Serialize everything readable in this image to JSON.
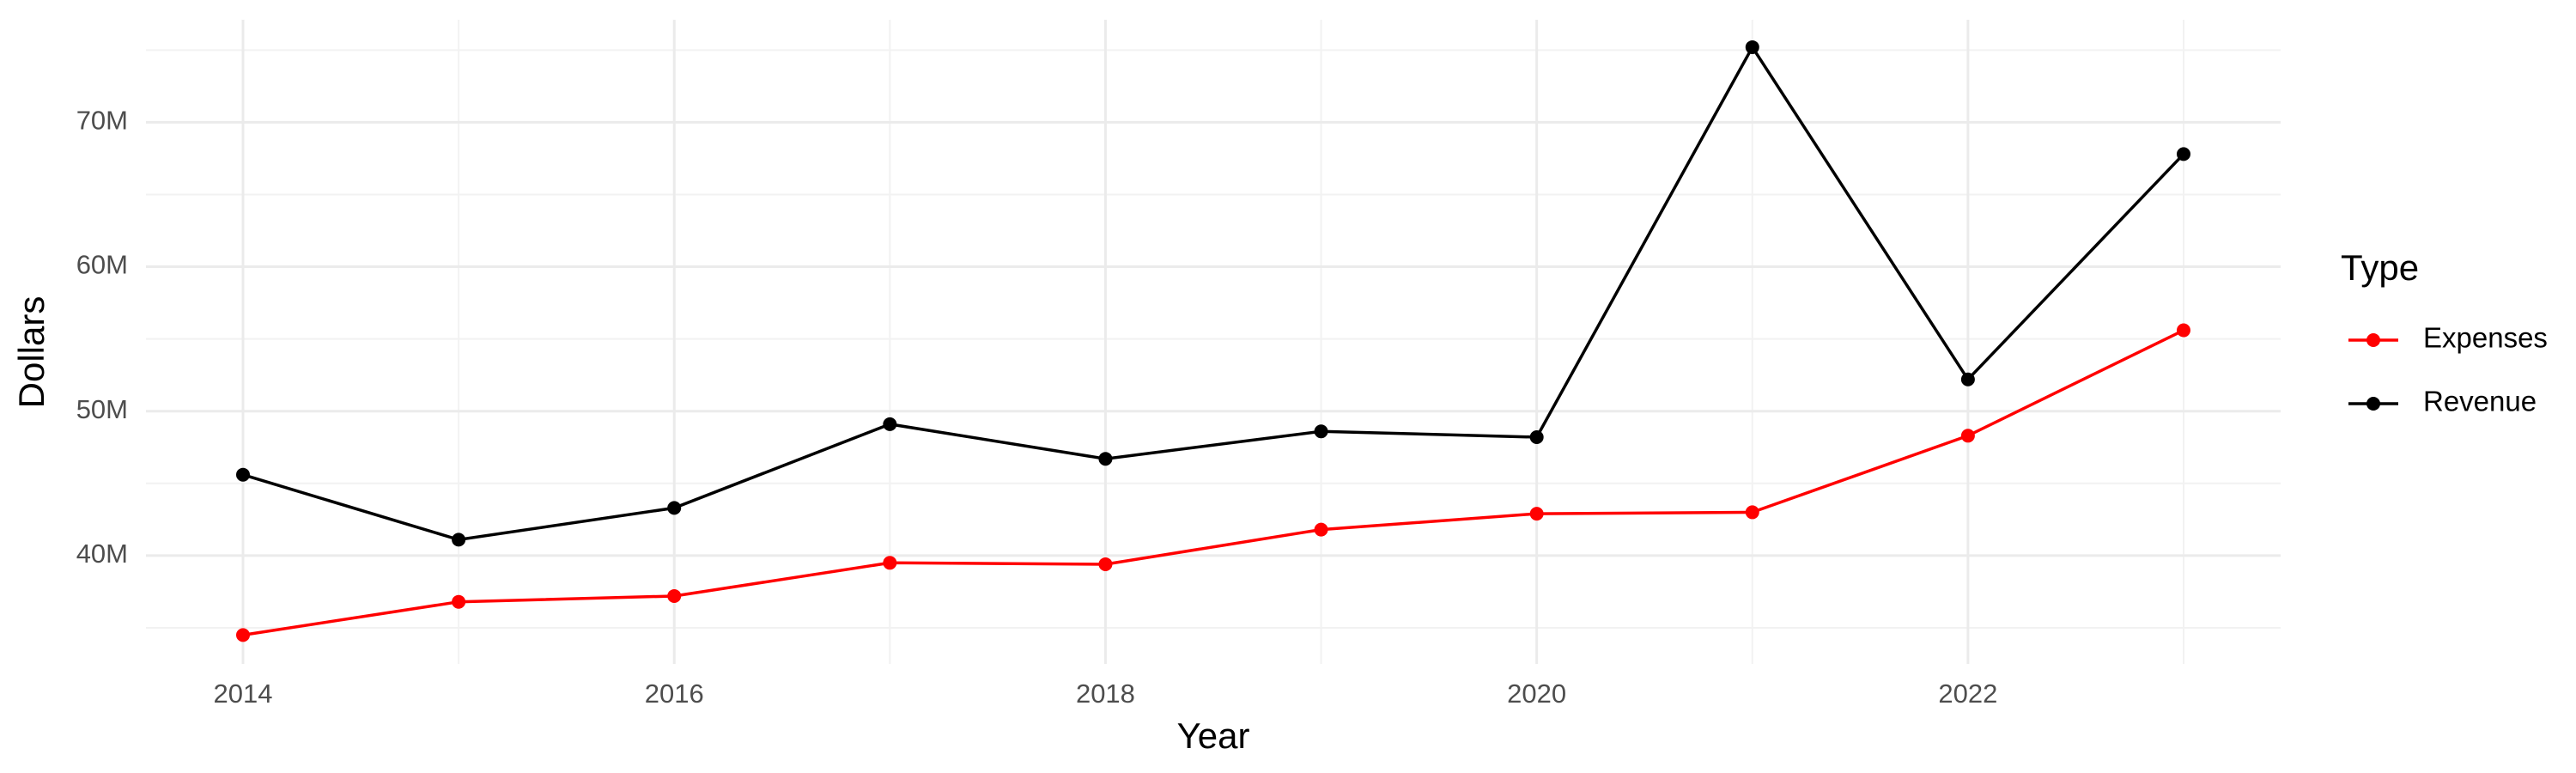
{
  "chart_data": {
    "type": "line",
    "x_label": "Year",
    "y_label": "Dollars",
    "legend_title": "Type",
    "legend_position": "right",
    "grid": true,
    "x": [
      2014,
      2015,
      2016,
      2017,
      2018,
      2019,
      2020,
      2021,
      2022,
      2023
    ],
    "series": [
      {
        "name": "Expenses",
        "color": "#ff0000",
        "values": [
          34500000,
          36800000,
          37200000,
          39500000,
          39400000,
          41800000,
          42900000,
          43000000,
          48300000,
          55600000
        ]
      },
      {
        "name": "Revenue",
        "color": "#000000",
        "values": [
          45600000,
          41100000,
          43300000,
          49100000,
          46700000,
          48600000,
          48200000,
          75200000,
          52200000,
          67800000
        ]
      }
    ],
    "xlim": [
      2013.55,
      2023.45
    ],
    "xticks": [
      2014,
      2016,
      2018,
      2020,
      2022
    ],
    "ylim": [
      32500000,
      77100000
    ],
    "yticks": [
      {
        "value": 40000000,
        "label": "40M"
      },
      {
        "value": 50000000,
        "label": "50M"
      },
      {
        "value": 60000000,
        "label": "60M"
      },
      {
        "value": 70000000,
        "label": "70M"
      }
    ]
  }
}
